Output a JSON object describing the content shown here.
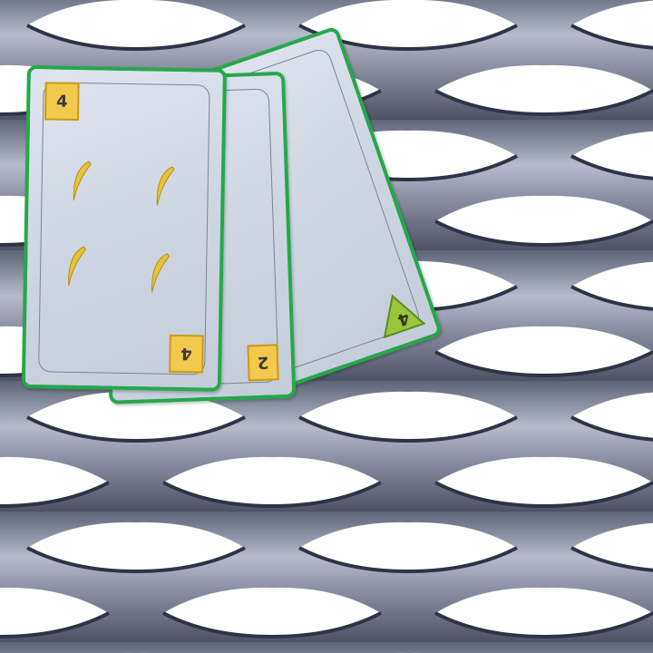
{
  "background": {
    "texture": "expanded-metal-mesh",
    "colors": {
      "metal": "#7c8396",
      "highlight": "#ffffff"
    }
  },
  "hand": {
    "cards": [
      {
        "id": "back2",
        "corner_value": "4",
        "badge_shape": "triangle",
        "badge_color": "#9ac43c"
      },
      {
        "id": "back1",
        "corner_value": "2",
        "badge_shape": "square",
        "badge_color": "#f2c94c"
      },
      {
        "id": "front",
        "corner_value_top": "4",
        "corner_value_bottom": "4",
        "pip_count": 4,
        "pip_icon": "banana-icon",
        "badge_color": "#f2c94c"
      }
    ],
    "border_color": "#25a84a"
  }
}
